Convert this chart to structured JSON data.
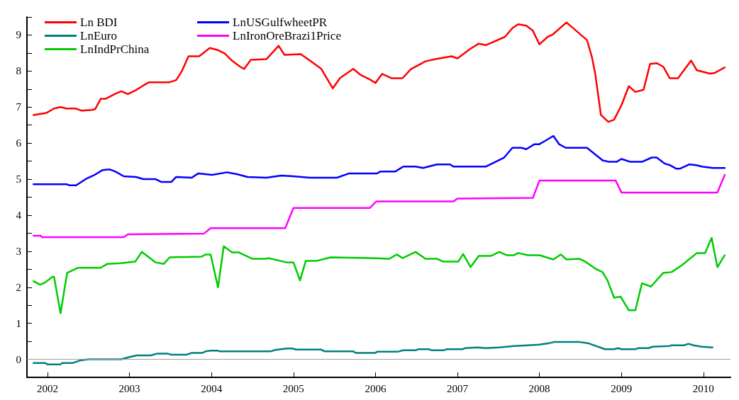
{
  "chart_data": {
    "type": "line",
    "legend": "top left",
    "grid": false,
    "line_style": "solid",
    "marker": "none",
    "xlim": [
      2001.75,
      2010.33
    ],
    "xticks": [
      2002,
      2003,
      2004,
      2005,
      2006,
      2007,
      2008,
      2009,
      2010
    ],
    "ylim": [
      -0.5,
      9.5
    ],
    "yticks": [
      {
        "value": -0.5,
        "label": null
      },
      0,
      {
        "value": 0.5,
        "label": null
      },
      1,
      {
        "value": 1.5,
        "label": null
      },
      2,
      {
        "value": 2.5,
        "label": null
      },
      3,
      {
        "value": 3.5,
        "label": null
      },
      4,
      {
        "value": 4.5,
        "label": null
      },
      5,
      {
        "value": 5.5,
        "label": null
      },
      6,
      {
        "value": 6.5,
        "label": null
      },
      7,
      {
        "value": 7.5,
        "label": null
      },
      8,
      {
        "value": 8.5,
        "label": null
      },
      9,
      {
        "value": 9.5,
        "label": null
      }
    ],
    "ref_lines": [
      {
        "axis": "y",
        "value": 0,
        "color": "#a0a0a0"
      }
    ],
    "series": [
      {
        "name": "Ln BDI",
        "color": "#ff0000",
        "x": [
          2001.83,
          2001.99,
          2002.08,
          2002.16,
          2002.23,
          2002.34,
          2002.42,
          2002.54,
          2002.58,
          2002.65,
          2002.71,
          2002.82,
          2002.9,
          2002.98,
          2003.07,
          2003.17,
          2003.24,
          2003.49,
          2003.57,
          2003.64,
          2003.72,
          2003.85,
          2003.98,
          2004.08,
          2004.16,
          2004.25,
          2004.35,
          2004.4,
          2004.48,
          2004.67,
          2004.82,
          2004.89,
          2005.09,
          2005.2,
          2005.34,
          2005.48,
          2005.57,
          2005.73,
          2005.82,
          2005.93,
          2006,
          2006.08,
          2006.2,
          2006.33,
          2006.43,
          2006.61,
          2006.73,
          2006.93,
          2007,
          2007.16,
          2007.26,
          2007.35,
          2007.58,
          2007.67,
          2007.74,
          2007.84,
          2007.92,
          2008,
          2008.1,
          2008.16,
          2008.33,
          2008.58,
          2008.64,
          2008.68,
          2008.75,
          2008.84,
          2008.91,
          2009,
          2009.09,
          2009.17,
          2009.27,
          2009.35,
          2009.43,
          2009.51,
          2009.59,
          2009.69,
          2009.85,
          2009.92,
          2010.08,
          2010.14,
          2010.26
        ],
        "values": [
          6.78,
          6.84,
          6.96,
          7.0,
          6.96,
          6.96,
          6.9,
          6.92,
          6.94,
          7.23,
          7.23,
          7.36,
          7.44,
          7.36,
          7.46,
          7.6,
          7.69,
          7.69,
          7.75,
          8.0,
          8.41,
          8.41,
          8.64,
          8.58,
          8.49,
          8.29,
          8.12,
          8.06,
          8.31,
          8.33,
          8.7,
          8.45,
          8.47,
          8.29,
          8.06,
          7.52,
          7.81,
          8.06,
          7.89,
          7.77,
          7.67,
          7.92,
          7.8,
          7.8,
          8.05,
          8.27,
          8.33,
          8.41,
          8.35,
          8.62,
          8.76,
          8.72,
          8.95,
          9.19,
          9.3,
          9.26,
          9.12,
          8.74,
          8.95,
          9.01,
          9.35,
          8.86,
          8.39,
          7.93,
          6.78,
          6.59,
          6.65,
          7.05,
          7.58,
          7.42,
          7.48,
          8.2,
          8.22,
          8.12,
          7.8,
          7.8,
          8.29,
          8.02,
          7.93,
          7.95,
          8.1
        ]
      },
      {
        "name": "LnUSGulfwheetPR",
        "color": "#0000ff",
        "x": [
          2001.83,
          2002.23,
          2002.27,
          2002.35,
          2002.48,
          2002.56,
          2002.67,
          2002.76,
          2002.83,
          2002.93,
          2003.08,
          2003.17,
          2003.32,
          2003.39,
          2003.51,
          2003.57,
          2003.76,
          2003.84,
          2004.01,
          2004.19,
          2004.31,
          2004.44,
          2004.67,
          2004.85,
          2005,
          2005.2,
          2005.53,
          2005.68,
          2005.93,
          2006.02,
          2006.06,
          2006.24,
          2006.34,
          2006.49,
          2006.58,
          2006.75,
          2006.91,
          2006.95,
          2007.35,
          2007.57,
          2007.67,
          2007.78,
          2007.84,
          2007.94,
          2008,
          2008.17,
          2008.24,
          2008.32,
          2008.58,
          2008.77,
          2008.85,
          2008.94,
          2009,
          2009.11,
          2009.25,
          2009.37,
          2009.43,
          2009.53,
          2009.59,
          2009.67,
          2009.71,
          2009.83,
          2009.91,
          2009.98,
          2010.11,
          2010.26
        ],
        "values": [
          4.86,
          4.86,
          4.83,
          4.83,
          5.02,
          5.1,
          5.25,
          5.27,
          5.21,
          5.08,
          5.06,
          5.0,
          5.0,
          4.92,
          4.92,
          5.06,
          5.04,
          5.16,
          5.12,
          5.19,
          5.14,
          5.06,
          5.04,
          5.1,
          5.08,
          5.04,
          5.04,
          5.16,
          5.16,
          5.16,
          5.21,
          5.21,
          5.35,
          5.35,
          5.31,
          5.41,
          5.41,
          5.35,
          5.35,
          5.6,
          5.87,
          5.87,
          5.83,
          5.97,
          5.97,
          6.2,
          5.97,
          5.87,
          5.87,
          5.52,
          5.48,
          5.48,
          5.56,
          5.48,
          5.48,
          5.6,
          5.6,
          5.43,
          5.39,
          5.29,
          5.29,
          5.41,
          5.39,
          5.35,
          5.31,
          5.31
        ]
      },
      {
        "name": "LnEuro",
        "color": "#008080",
        "x": [
          2001.83,
          2001.97,
          2002,
          2002.16,
          2002.18,
          2002.31,
          2002.4,
          2002.5,
          2002.9,
          2003.01,
          2003.09,
          2003.26,
          2003.34,
          2003.46,
          2003.51,
          2003.7,
          2003.76,
          2003.89,
          2003.93,
          2003.99,
          2004.08,
          2004.1,
          2004.72,
          2004.78,
          2004.92,
          2004.99,
          2005.03,
          2005.34,
          2005.38,
          2005.73,
          2005.76,
          2006,
          2006.02,
          2006.27,
          2006.34,
          2006.49,
          2006.52,
          2006.65,
          2006.69,
          2006.83,
          2006.87,
          2007.06,
          2007.09,
          2007.25,
          2007.34,
          2007.51,
          2007.69,
          2007.86,
          2008,
          2008.12,
          2008.18,
          2008.49,
          2008.59,
          2008.8,
          2008.91,
          2008.96,
          2009,
          2009.17,
          2009.2,
          2009.33,
          2009.38,
          2009.59,
          2009.61,
          2009.76,
          2009.82,
          2009.88,
          2009.98,
          2010.11
        ],
        "values": [
          -0.1,
          -0.1,
          -0.14,
          -0.14,
          -0.1,
          -0.1,
          -0.03,
          0.0,
          0.0,
          0.07,
          0.11,
          0.11,
          0.16,
          0.16,
          0.13,
          0.13,
          0.18,
          0.18,
          0.22,
          0.24,
          0.24,
          0.22,
          0.22,
          0.26,
          0.3,
          0.3,
          0.27,
          0.27,
          0.22,
          0.22,
          0.18,
          0.18,
          0.21,
          0.21,
          0.25,
          0.25,
          0.28,
          0.28,
          0.25,
          0.25,
          0.28,
          0.28,
          0.31,
          0.33,
          0.31,
          0.33,
          0.37,
          0.39,
          0.41,
          0.45,
          0.48,
          0.48,
          0.45,
          0.28,
          0.28,
          0.31,
          0.28,
          0.28,
          0.31,
          0.31,
          0.35,
          0.37,
          0.39,
          0.39,
          0.43,
          0.39,
          0.35,
          0.33
        ]
      },
      {
        "name": "LnIronOreBrazi1Price",
        "color": "#ff00ff",
        "x": [
          2001.83,
          2001.92,
          2001.93,
          2002.93,
          2002.98,
          2003.91,
          2003.99,
          2004.9,
          2005,
          2005.93,
          2006.01,
          2006.95,
          2007,
          2007.92,
          2008,
          2008.93,
          2009,
          2010.17,
          2010.26
        ],
        "values": [
          3.43,
          3.43,
          3.39,
          3.39,
          3.47,
          3.49,
          3.64,
          3.64,
          4.2,
          4.2,
          4.38,
          4.38,
          4.46,
          4.48,
          4.96,
          4.96,
          4.63,
          4.63,
          5.12
        ]
      },
      {
        "name": "LnIndPrChina",
        "color": "#00cc00",
        "x": [
          2001.83,
          2001.91,
          2001.97,
          2002.06,
          2002.08,
          2002.16,
          2002.24,
          2002.37,
          2002.65,
          2002.73,
          2002.9,
          2003.07,
          2003.15,
          2003.32,
          2003.42,
          2003.49,
          2003.88,
          2003.93,
          2003.99,
          2004.08,
          2004.15,
          2004.25,
          2004.33,
          2004.5,
          2004.67,
          2004.69,
          2004.92,
          2005,
          2005.08,
          2005.15,
          2005.28,
          2005.45,
          2005.94,
          2006.17,
          2006.26,
          2006.33,
          2006.49,
          2006.61,
          2006.75,
          2006.83,
          2007.01,
          2007.07,
          2007.16,
          2007.26,
          2007.41,
          2007.51,
          2007.6,
          2007.69,
          2007.74,
          2007.86,
          2008,
          2008.17,
          2008.26,
          2008.33,
          2008.49,
          2008.56,
          2008.68,
          2008.77,
          2008.83,
          2008.91,
          2008.99,
          2009.09,
          2009.17,
          2009.25,
          2009.36,
          2009.51,
          2009.61,
          2009.73,
          2009.92,
          2010.02,
          2010.1,
          2010.17,
          2010.26
        ],
        "values": [
          2.17,
          2.07,
          2.13,
          2.29,
          2.29,
          1.28,
          2.4,
          2.54,
          2.54,
          2.65,
          2.67,
          2.71,
          2.98,
          2.69,
          2.65,
          2.83,
          2.85,
          2.91,
          2.91,
          2.0,
          3.14,
          2.97,
          2.97,
          2.79,
          2.79,
          2.81,
          2.69,
          2.69,
          2.19,
          2.73,
          2.73,
          2.83,
          2.81,
          2.79,
          2.91,
          2.81,
          2.98,
          2.79,
          2.79,
          2.71,
          2.71,
          2.92,
          2.56,
          2.87,
          2.87,
          2.98,
          2.89,
          2.89,
          2.95,
          2.89,
          2.89,
          2.77,
          2.91,
          2.77,
          2.79,
          2.71,
          2.52,
          2.42,
          2.19,
          1.71,
          1.74,
          1.36,
          1.36,
          2.11,
          2.02,
          2.4,
          2.42,
          2.6,
          2.95,
          2.95,
          3.37,
          2.56,
          2.89
        ]
      }
    ]
  }
}
